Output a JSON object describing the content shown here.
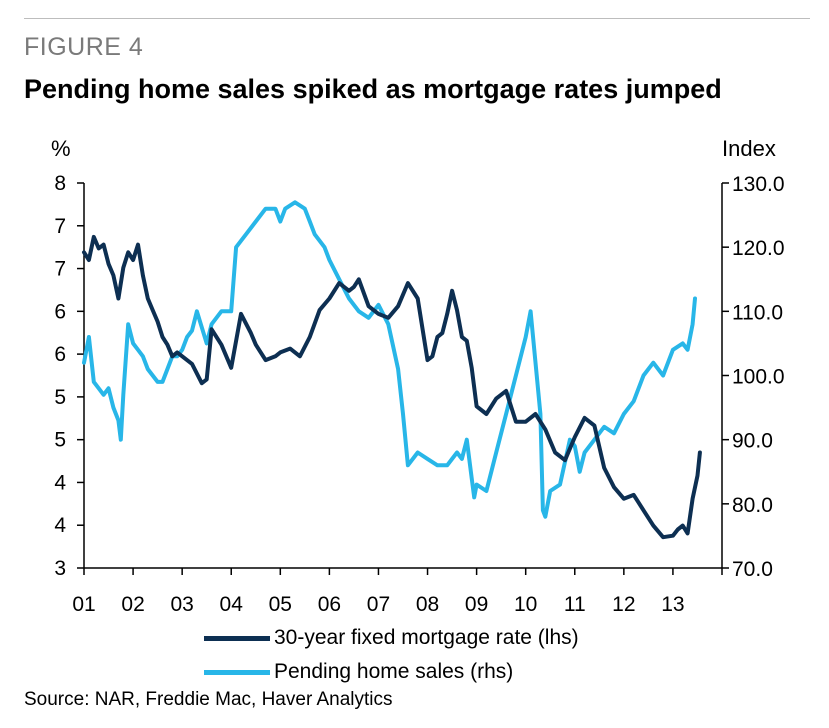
{
  "figure_label": "FIGURE 4",
  "title": "Pending home sales spiked as mortgage rates jumped",
  "source": "Source: NAR, Freddie Mac, Haver Analytics",
  "colors": {
    "mortgage": "#0d2f52",
    "pending": "#28b6e8"
  },
  "chart_data": {
    "type": "line",
    "xlabel": "",
    "x_ticks": [
      "01",
      "02",
      "03",
      "04",
      "05",
      "06",
      "07",
      "08",
      "09",
      "10",
      "11",
      "12",
      "13"
    ],
    "left_axis": {
      "unit": "%",
      "ticks": [
        "8",
        "7",
        "7",
        "6",
        "6",
        "5",
        "5",
        "4",
        "4",
        "3"
      ],
      "ylim": [
        3.0,
        8.0
      ]
    },
    "right_axis": {
      "unit": "Index",
      "ticks": [
        "130.0",
        "120.0",
        "110.0",
        "100.0",
        "90.0",
        "80.0",
        "70.0"
      ],
      "ylim": [
        70,
        130
      ]
    },
    "grid": false,
    "legend_position": "bottom",
    "series": [
      {
        "name": "30-year fixed mortgage rate (lhs)",
        "axis": "left",
        "x": [
          2001.0,
          2001.1,
          2001.2,
          2001.3,
          2001.4,
          2001.5,
          2001.6,
          2001.7,
          2001.8,
          2001.9,
          2002.0,
          2002.1,
          2002.2,
          2002.3,
          2002.4,
          2002.5,
          2002.6,
          2002.7,
          2002.8,
          2002.9,
          2003.0,
          2003.2,
          2003.4,
          2003.5,
          2003.6,
          2003.8,
          2004.0,
          2004.2,
          2004.4,
          2004.5,
          2004.7,
          2004.9,
          2005.0,
          2005.2,
          2005.4,
          2005.6,
          2005.8,
          2006.0,
          2006.2,
          2006.4,
          2006.5,
          2006.6,
          2006.8,
          2007.0,
          2007.2,
          2007.4,
          2007.6,
          2007.8,
          2007.9,
          2008.0,
          2008.1,
          2008.2,
          2008.3,
          2008.4,
          2008.5,
          2008.6,
          2008.7,
          2008.8,
          2008.9,
          2009.0,
          2009.2,
          2009.4,
          2009.6,
          2009.8,
          2010.0,
          2010.2,
          2010.4,
          2010.6,
          2010.8,
          2011.0,
          2011.2,
          2011.4,
          2011.6,
          2011.8,
          2012.0,
          2012.2,
          2012.4,
          2012.6,
          2012.8,
          2013.0,
          2013.1,
          2013.2,
          2013.3,
          2013.4,
          2013.5,
          2013.55
        ],
        "values": [
          7.1,
          7.0,
          7.3,
          7.15,
          7.2,
          6.95,
          6.8,
          6.5,
          6.9,
          7.1,
          7.0,
          7.2,
          6.8,
          6.5,
          6.35,
          6.2,
          6.0,
          5.9,
          5.75,
          5.8,
          5.75,
          5.65,
          5.4,
          5.45,
          6.1,
          5.9,
          5.6,
          6.3,
          6.05,
          5.9,
          5.7,
          5.75,
          5.8,
          5.85,
          5.75,
          6.0,
          6.35,
          6.5,
          6.7,
          6.6,
          6.65,
          6.75,
          6.4,
          6.3,
          6.25,
          6.4,
          6.7,
          6.5,
          6.1,
          5.7,
          5.75,
          6.0,
          6.05,
          6.3,
          6.6,
          6.35,
          6.0,
          5.95,
          5.6,
          5.1,
          5.0,
          5.2,
          5.3,
          4.9,
          4.9,
          5.0,
          4.8,
          4.5,
          4.4,
          4.7,
          4.95,
          4.85,
          4.3,
          4.05,
          3.9,
          3.95,
          3.75,
          3.55,
          3.4,
          3.42,
          3.5,
          3.55,
          3.45,
          3.9,
          4.2,
          4.5
        ]
      },
      {
        "name": "Pending home sales (rhs)",
        "axis": "right",
        "x": [
          2001.0,
          2001.1,
          2001.2,
          2001.3,
          2001.4,
          2001.5,
          2001.6,
          2001.7,
          2001.75,
          2001.8,
          2001.9,
          2002.0,
          2002.1,
          2002.2,
          2002.3,
          2002.4,
          2002.5,
          2002.6,
          2002.7,
          2002.8,
          2002.9,
          2003.0,
          2003.1,
          2003.2,
          2003.3,
          2003.5,
          2003.6,
          2003.8,
          2004.0,
          2004.1,
          2004.2,
          2004.3,
          2004.5,
          2004.7,
          2004.9,
          2005.0,
          2005.1,
          2005.3,
          2005.5,
          2005.6,
          2005.7,
          2005.9,
          2006.0,
          2006.2,
          2006.4,
          2006.6,
          2006.8,
          2007.0,
          2007.2,
          2007.4,
          2007.5,
          2007.6,
          2007.8,
          2008.0,
          2008.2,
          2008.4,
          2008.5,
          2008.6,
          2008.7,
          2008.8,
          2008.9,
          2008.95,
          2009.0,
          2009.2,
          2009.4,
          2009.6,
          2009.8,
          2010.0,
          2010.1,
          2010.3,
          2010.35,
          2010.4,
          2010.5,
          2010.7,
          2010.9,
          2011.0,
          2011.1,
          2011.2,
          2011.4,
          2011.6,
          2011.8,
          2012.0,
          2012.2,
          2012.4,
          2012.6,
          2012.8,
          2013.0,
          2013.2,
          2013.3,
          2013.4,
          2013.45
        ],
        "values": [
          102,
          106,
          99,
          98,
          97,
          98,
          95,
          93,
          90,
          97,
          108,
          105,
          104,
          103,
          101,
          100,
          99,
          99,
          101,
          103,
          103,
          104,
          106,
          107,
          110,
          105,
          108,
          110,
          110,
          120,
          121,
          122,
          124,
          126,
          126,
          124,
          126,
          127,
          126,
          124,
          122,
          120,
          118,
          115,
          112,
          110,
          109,
          111,
          108,
          101,
          94,
          86,
          88,
          87,
          86,
          86,
          87,
          88,
          87,
          90,
          84,
          81,
          83,
          82,
          88,
          94,
          100,
          106,
          110,
          94,
          79,
          78,
          82,
          83,
          90,
          89,
          85,
          88,
          90,
          92,
          91,
          94,
          96,
          100,
          102,
          100,
          104,
          105,
          104,
          108,
          112
        ]
      }
    ]
  }
}
